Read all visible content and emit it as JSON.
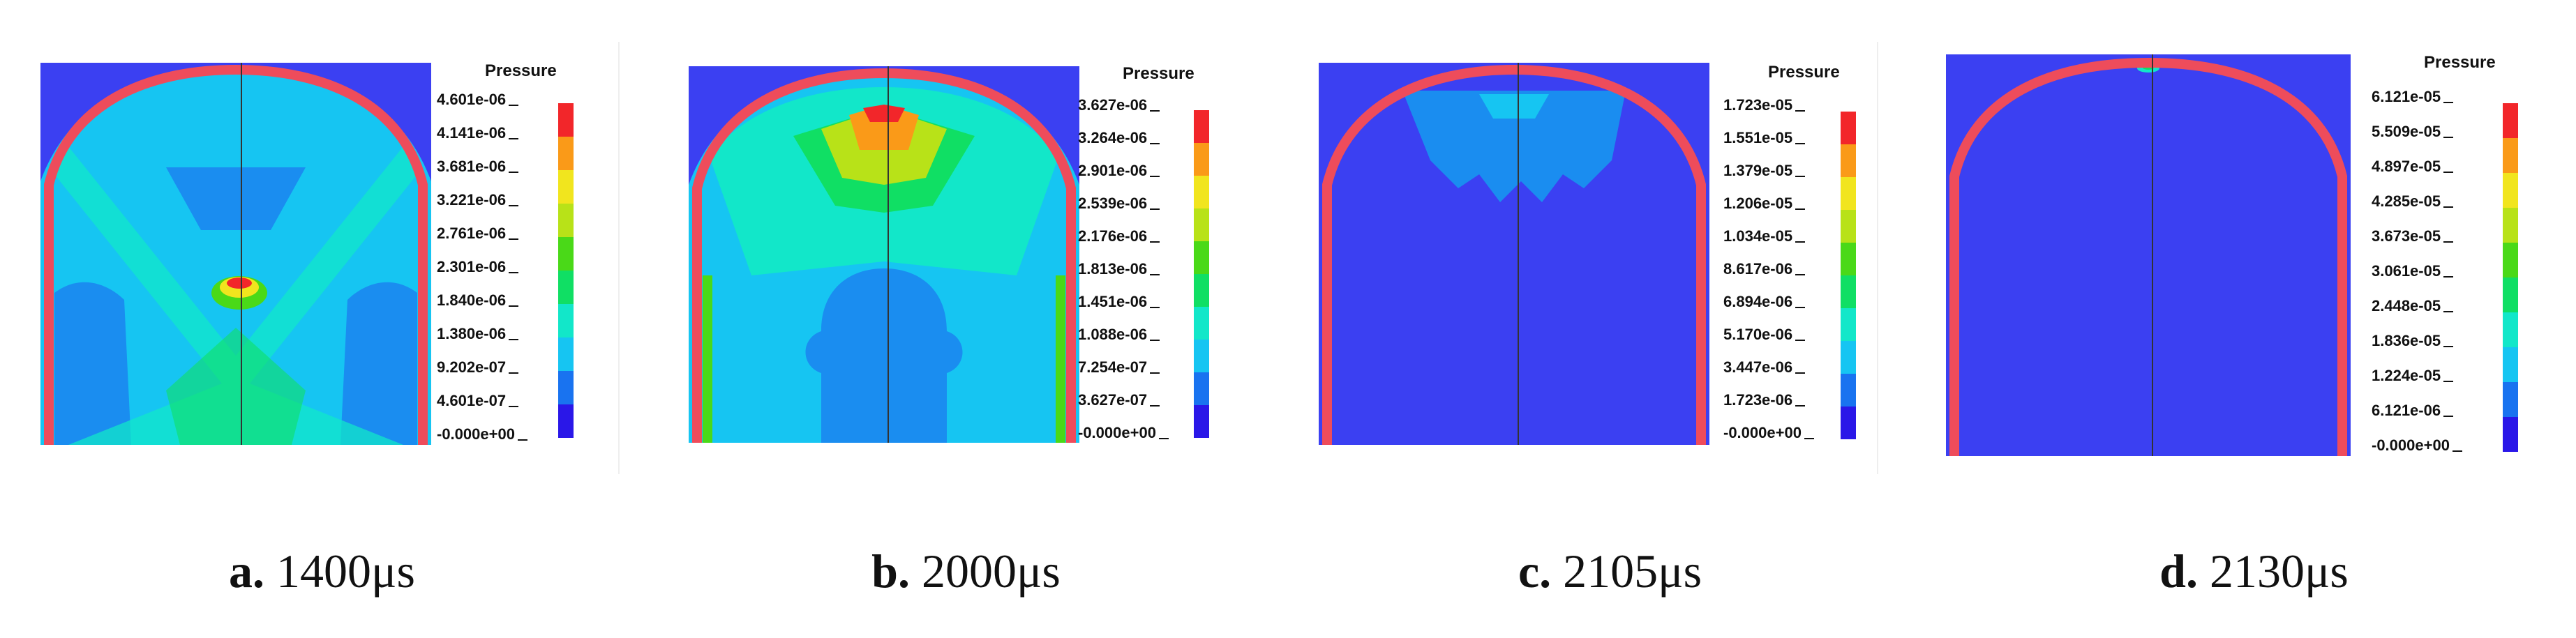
{
  "legend_title": "Pressure",
  "legend_colors": [
    "#2a17e8",
    "#1973f0",
    "#16c5f2",
    "#12e7c9",
    "#10df64",
    "#4ad918",
    "#b8e218",
    "#f1e51e",
    "#fa9a18",
    "#f2262a"
  ],
  "panels": [
    {
      "label": "a.",
      "time": "1400μs",
      "ticks": [
        "4.601e-06",
        "4.141e-06",
        "3.681e-06",
        "3.221e-06",
        "2.761e-06",
        "2.301e-06",
        "1.840e-06",
        "1.380e-06",
        "9.202e-07",
        "4.601e-07",
        "-0.000e+00"
      ]
    },
    {
      "label": "b.",
      "time": "2000μs",
      "ticks": [
        "3.627e-06",
        "3.264e-06",
        "2.901e-06",
        "2.539e-06",
        "2.176e-06",
        "1.813e-06",
        "1.451e-06",
        "1.088e-06",
        "7.254e-07",
        "3.627e-07",
        "-0.000e+00"
      ]
    },
    {
      "label": "c.",
      "time": "2105μs",
      "ticks": [
        "1.723e-05",
        "1.551e-05",
        "1.379e-05",
        "1.206e-05",
        "1.034e-05",
        "8.617e-06",
        "6.894e-06",
        "5.170e-06",
        "3.447e-06",
        "1.723e-06",
        "-0.000e+00"
      ]
    },
    {
      "label": "d.",
      "time": "2130μs",
      "ticks": [
        "6.121e-05",
        "5.509e-05",
        "4.897e-05",
        "4.285e-05",
        "3.673e-05",
        "3.061e-05",
        "2.448e-05",
        "1.836e-05",
        "1.224e-05",
        "6.121e-06",
        "-0.000e+00"
      ]
    }
  ]
}
